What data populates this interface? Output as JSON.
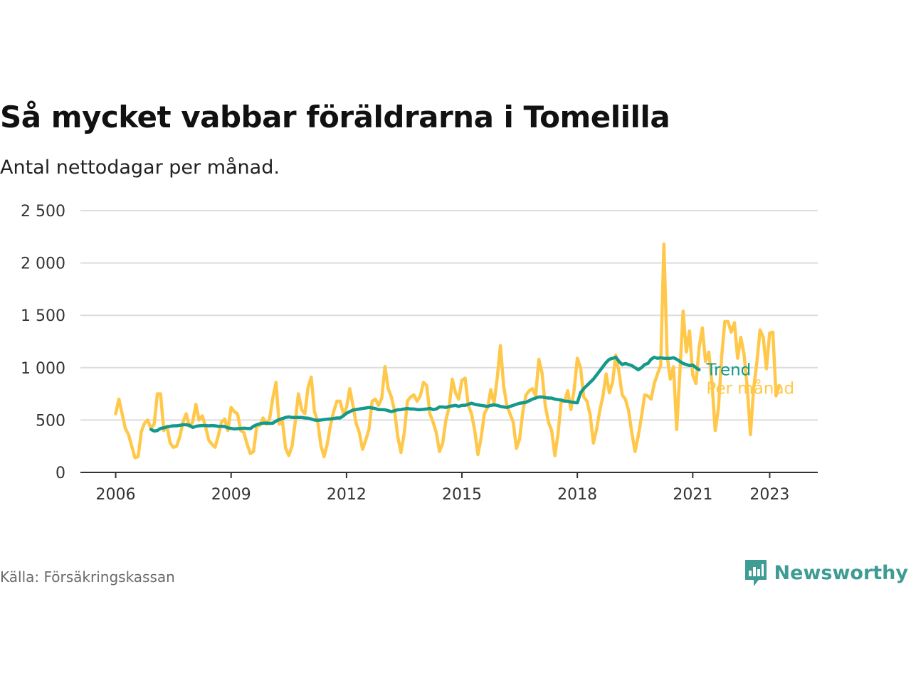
{
  "title": "Så mycket vabbar föräldrarna i Tomelilla",
  "subtitle": "Antal nettodagar per månad.",
  "source": "Källa: Försäkringskassan",
  "brand": "Newsworthy",
  "colors": {
    "monthly": "#ffc84a",
    "trend": "#14998c",
    "axis": "#333333",
    "grid": "#dddddd",
    "brand": "#3f9c94"
  },
  "chart_data": {
    "type": "line",
    "title": "Så mycket vabbar föräldrarna i Tomelilla",
    "subtitle": "Antal nettodagar per månad.",
    "xlabel": "",
    "ylabel": "",
    "xlim": [
      "2005-02",
      "2024-04"
    ],
    "ylim": [
      0,
      2500
    ],
    "x_ticks": [
      "2006",
      "2009",
      "2012",
      "2015",
      "2018",
      "2021",
      "2023"
    ],
    "y_ticks": [
      "0",
      "500",
      "1 000",
      "1 500",
      "2 000",
      "2 500"
    ],
    "y_tick_values": [
      0,
      500,
      1000,
      1500,
      2000,
      2500
    ],
    "grid": true,
    "legend": "direct labels at line ends (right)",
    "series": [
      {
        "name": "Per månad",
        "color": "#ffc84a",
        "start": "2006-01",
        "values": [
          560,
          700,
          560,
          420,
          360,
          250,
          140,
          150,
          390,
          470,
          500,
          420,
          460,
          750,
          750,
          400,
          440,
          280,
          240,
          250,
          340,
          480,
          560,
          440,
          480,
          650,
          500,
          540,
          440,
          310,
          270,
          240,
          350,
          480,
          510,
          400,
          620,
          580,
          560,
          400,
          380,
          270,
          180,
          200,
          440,
          450,
          520,
          460,
          510,
          710,
          860,
          460,
          490,
          230,
          160,
          250,
          480,
          750,
          600,
          560,
          810,
          910,
          580,
          490,
          260,
          150,
          270,
          450,
          580,
          680,
          680,
          560,
          620,
          800,
          640,
          470,
          380,
          220,
          310,
          410,
          680,
          700,
          640,
          710,
          1010,
          800,
          720,
          590,
          340,
          190,
          370,
          680,
          720,
          740,
          680,
          730,
          860,
          830,
          560,
          480,
          380,
          200,
          280,
          500,
          620,
          890,
          760,
          700,
          880,
          900,
          640,
          560,
          400,
          170,
          330,
          560,
          620,
          790,
          660,
          900,
          1210,
          830,
          640,
          560,
          480,
          230,
          320,
          580,
          740,
          780,
          800,
          730,
          1080,
          950,
          640,
          480,
          400,
          160,
          370,
          690,
          680,
          780,
          600,
          790,
          1090,
          1000,
          720,
          680,
          550,
          280,
          410,
          590,
          730,
          940,
          760,
          860,
          1120,
          960,
          740,
          700,
          590,
          380,
          200,
          350,
          530,
          740,
          730,
          700,
          850,
          940,
          1020,
          2180,
          1120,
          890,
          1010,
          410,
          960,
          1540,
          1150,
          1350,
          930,
          850,
          1190,
          1380,
          1060,
          1150,
          850,
          400,
          610,
          1100,
          1440,
          1440,
          1340,
          1430,
          1090,
          1290,
          1130,
          810,
          360,
          800,
          1050,
          1360,
          1290,
          990,
          1330,
          1340,
          730,
          830
        ]
      },
      {
        "name": "Trend",
        "color": "#14998c",
        "start": "2006-12",
        "values": [
          410,
          395,
          400,
          420,
          425,
          435,
          440,
          445,
          445,
          450,
          455,
          455,
          450,
          430,
          440,
          445,
          448,
          448,
          445,
          448,
          445,
          440,
          440,
          438,
          425,
          420,
          415,
          418,
          420,
          422,
          420,
          418,
          440,
          455,
          465,
          470,
          470,
          468,
          470,
          490,
          505,
          515,
          525,
          530,
          525,
          525,
          525,
          525,
          520,
          518,
          510,
          500,
          498,
          500,
          505,
          508,
          510,
          515,
          520,
          520,
          540,
          565,
          580,
          595,
          600,
          605,
          610,
          615,
          620,
          615,
          610,
          600,
          600,
          598,
          590,
          580,
          590,
          598,
          600,
          605,
          610,
          605,
          605,
          600,
          600,
          602,
          605,
          612,
          600,
          605,
          625,
          625,
          620,
          630,
          635,
          640,
          630,
          640,
          640,
          650,
          660,
          650,
          645,
          640,
          635,
          630,
          640,
          645,
          640,
          630,
          625,
          620,
          630,
          640,
          650,
          660,
          665,
          670,
          685,
          700,
          710,
          720,
          720,
          715,
          710,
          710,
          700,
          695,
          690,
          680,
          680,
          672,
          668,
          665,
          760,
          800,
          830,
          860,
          890,
          930,
          970,
          1010,
          1050,
          1080,
          1090,
          1100,
          1060,
          1030,
          1040,
          1030,
          1020,
          1000,
          980,
          1000,
          1030,
          1040,
          1080,
          1100,
          1090,
          1095,
          1090,
          1088,
          1090,
          1095,
          1080,
          1060,
          1040,
          1030,
          1020,
          1025,
          1000,
          980
        ]
      }
    ]
  }
}
